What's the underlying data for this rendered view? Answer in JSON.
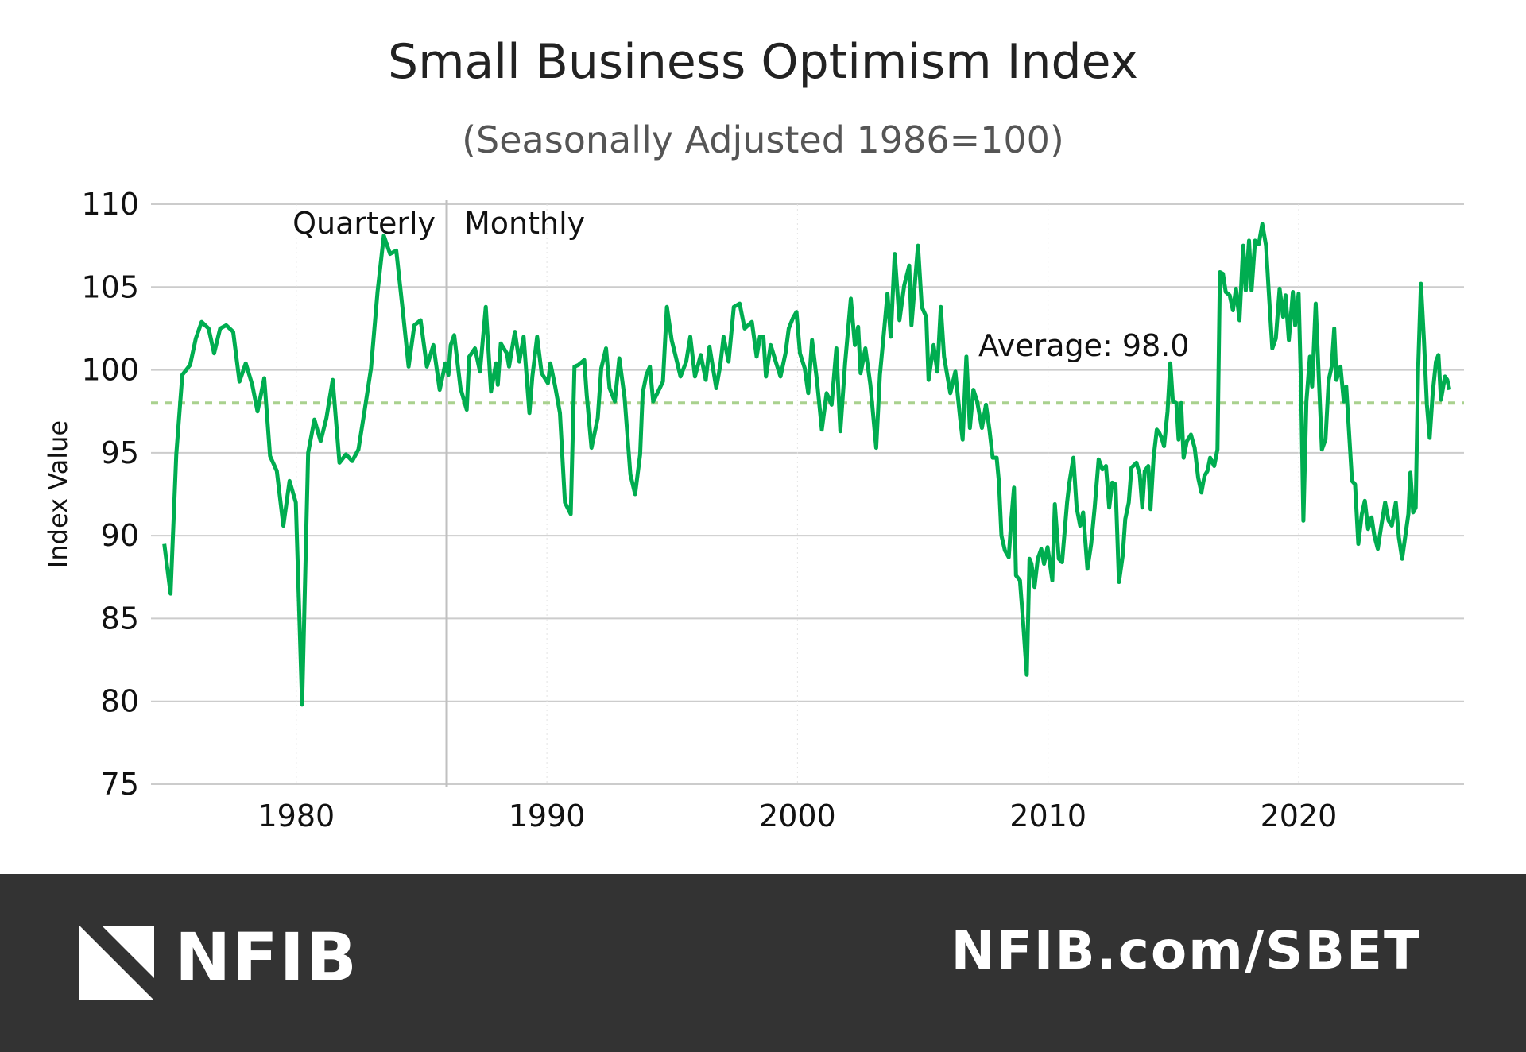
{
  "chart_data": {
    "type": "line",
    "title": "Small Business Optimism Index",
    "subtitle": "(Seasonally Adjusted 1986=100)",
    "ylabel": "Index Value",
    "xlabel": "",
    "ylim": [
      75,
      110
    ],
    "xlim": [
      1974.2,
      2026.6
    ],
    "yticks": [
      "75",
      "80",
      "85",
      "90",
      "95",
      "100",
      "105",
      "110"
    ],
    "xticks": [
      "1980",
      "1990",
      "2000",
      "2010",
      "2020"
    ],
    "grid": true,
    "colors": {
      "line": "#00ad50",
      "average": "#a9d18e",
      "grid": "#cccccc",
      "divider": "#c0c0c0"
    },
    "average": {
      "value": 98.0,
      "label": "Average: 98.0"
    },
    "divider": {
      "x": 1986,
      "left_label": "Quarterly",
      "right_label": "Monthly"
    },
    "points": [
      [
        1974.73,
        89.5
      ],
      [
        1974.98,
        86.5
      ],
      [
        1975.21,
        94.9
      ],
      [
        1975.45,
        99.7
      ],
      [
        1975.76,
        100.3
      ],
      [
        1975.99,
        101.9
      ],
      [
        1976.22,
        102.9
      ],
      [
        1976.5,
        102.5
      ],
      [
        1976.72,
        101.0
      ],
      [
        1976.96,
        102.5
      ],
      [
        1977.2,
        102.7
      ],
      [
        1977.48,
        102.3
      ],
      [
        1977.73,
        99.3
      ],
      [
        1977.98,
        100.4
      ],
      [
        1978.24,
        99.1
      ],
      [
        1978.45,
        97.5
      ],
      [
        1978.72,
        99.5
      ],
      [
        1978.95,
        94.8
      ],
      [
        1979.22,
        93.9
      ],
      [
        1979.48,
        90.6
      ],
      [
        1979.73,
        93.3
      ],
      [
        1979.98,
        92.0
      ],
      [
        1980.23,
        79.8
      ],
      [
        1980.47,
        95.0
      ],
      [
        1980.72,
        97.0
      ],
      [
        1980.97,
        95.7
      ],
      [
        1981.2,
        97.1
      ],
      [
        1981.45,
        99.4
      ],
      [
        1981.72,
        94.4
      ],
      [
        1981.98,
        94.9
      ],
      [
        1982.23,
        94.5
      ],
      [
        1982.48,
        95.2
      ],
      [
        1982.73,
        97.6
      ],
      [
        1982.98,
        100.1
      ],
      [
        1983.24,
        104.7
      ],
      [
        1983.49,
        108.1
      ],
      [
        1983.74,
        107.0
      ],
      [
        1983.99,
        107.2
      ],
      [
        1984.24,
        103.7
      ],
      [
        1984.48,
        100.2
      ],
      [
        1984.71,
        102.7
      ],
      [
        1984.96,
        103.0
      ],
      [
        1985.21,
        100.2
      ],
      [
        1985.47,
        101.5
      ],
      [
        1985.72,
        98.8
      ],
      [
        1985.95,
        100.4
      ],
      [
        1986.07,
        99.7
      ],
      [
        1986.16,
        101.5
      ],
      [
        1986.3,
        102.1
      ],
      [
        1986.55,
        98.9
      ],
      [
        1986.8,
        97.6
      ],
      [
        1986.9,
        100.8
      ],
      [
        1987.13,
        101.3
      ],
      [
        1987.33,
        99.9
      ],
      [
        1987.56,
        103.8
      ],
      [
        1987.77,
        98.7
      ],
      [
        1987.97,
        100.4
      ],
      [
        1988.04,
        99.1
      ],
      [
        1988.16,
        101.6
      ],
      [
        1988.4,
        101.0
      ],
      [
        1988.49,
        100.2
      ],
      [
        1988.72,
        102.3
      ],
      [
        1988.9,
        100.5
      ],
      [
        1989.07,
        102.0
      ],
      [
        1989.3,
        97.4
      ],
      [
        1989.42,
        99.6
      ],
      [
        1989.61,
        102.0
      ],
      [
        1989.79,
        99.8
      ],
      [
        1990.04,
        99.2
      ],
      [
        1990.14,
        100.4
      ],
      [
        1990.33,
        99.0
      ],
      [
        1990.52,
        97.4
      ],
      [
        1990.72,
        92.0
      ],
      [
        1990.95,
        91.3
      ],
      [
        1991.1,
        100.2
      ],
      [
        1991.26,
        100.3
      ],
      [
        1991.49,
        100.6
      ],
      [
        1991.59,
        98.5
      ],
      [
        1991.78,
        95.3
      ],
      [
        1992.03,
        97.1
      ],
      [
        1992.17,
        100.1
      ],
      [
        1992.36,
        101.3
      ],
      [
        1992.5,
        98.9
      ],
      [
        1992.71,
        98.1
      ],
      [
        1992.89,
        100.7
      ],
      [
        1993.1,
        98.3
      ],
      [
        1993.33,
        93.7
      ],
      [
        1993.52,
        92.5
      ],
      [
        1993.72,
        94.9
      ],
      [
        1993.82,
        98.6
      ],
      [
        1993.97,
        99.7
      ],
      [
        1994.11,
        100.2
      ],
      [
        1994.24,
        98.1
      ],
      [
        1994.44,
        98.7
      ],
      [
        1994.63,
        99.3
      ],
      [
        1994.79,
        103.8
      ],
      [
        1994.98,
        101.8
      ],
      [
        1995.14,
        100.8
      ],
      [
        1995.33,
        99.6
      ],
      [
        1995.56,
        100.5
      ],
      [
        1995.72,
        102.0
      ],
      [
        1995.91,
        99.6
      ],
      [
        1996.14,
        100.9
      ],
      [
        1996.34,
        99.4
      ],
      [
        1996.49,
        101.4
      ],
      [
        1996.76,
        98.9
      ],
      [
        1996.92,
        100.3
      ],
      [
        1997.05,
        102.0
      ],
      [
        1997.25,
        100.5
      ],
      [
        1997.46,
        103.8
      ],
      [
        1997.69,
        104.0
      ],
      [
        1997.89,
        102.5
      ],
      [
        1998.18,
        102.9
      ],
      [
        1998.37,
        100.8
      ],
      [
        1998.5,
        102.0
      ],
      [
        1998.64,
        102.0
      ],
      [
        1998.74,
        99.6
      ],
      [
        1998.93,
        101.5
      ],
      [
        1999.13,
        100.5
      ],
      [
        1999.32,
        99.6
      ],
      [
        1999.52,
        101.0
      ],
      [
        1999.65,
        102.5
      ],
      [
        1999.81,
        103.1
      ],
      [
        1999.96,
        103.5
      ],
      [
        2000.1,
        101.0
      ],
      [
        2000.29,
        100.1
      ],
      [
        2000.43,
        98.6
      ],
      [
        2000.58,
        101.8
      ],
      [
        2000.78,
        99.3
      ],
      [
        2000.97,
        96.4
      ],
      [
        2001.16,
        98.6
      ],
      [
        2001.36,
        97.9
      ],
      [
        2001.55,
        101.3
      ],
      [
        2001.71,
        96.3
      ],
      [
        2001.9,
        100.4
      ],
      [
        2002.13,
        104.3
      ],
      [
        2002.29,
        101.5
      ],
      [
        2002.42,
        102.6
      ],
      [
        2002.52,
        99.8
      ],
      [
        2002.71,
        101.3
      ],
      [
        2002.91,
        99.1
      ],
      [
        2003.14,
        95.3
      ],
      [
        2003.29,
        99.7
      ],
      [
        2003.45,
        102.3
      ],
      [
        2003.59,
        104.6
      ],
      [
        2003.72,
        102.0
      ],
      [
        2003.88,
        107.0
      ],
      [
        2004.07,
        103.0
      ],
      [
        2004.26,
        105.1
      ],
      [
        2004.46,
        106.3
      ],
      [
        2004.55,
        102.7
      ],
      [
        2004.81,
        107.5
      ],
      [
        2004.96,
        103.8
      ],
      [
        2005.14,
        103.2
      ],
      [
        2005.23,
        99.4
      ],
      [
        2005.43,
        101.5
      ],
      [
        2005.58,
        99.9
      ],
      [
        2005.72,
        103.8
      ],
      [
        2005.85,
        100.8
      ],
      [
        2006.1,
        98.6
      ],
      [
        2006.3,
        99.9
      ],
      [
        2006.49,
        97.1
      ],
      [
        2006.59,
        95.8
      ],
      [
        2006.74,
        100.8
      ],
      [
        2006.88,
        96.5
      ],
      [
        2007.02,
        98.8
      ],
      [
        2007.17,
        98.1
      ],
      [
        2007.36,
        96.5
      ],
      [
        2007.52,
        97.9
      ],
      [
        2007.66,
        96.4
      ],
      [
        2007.79,
        94.7
      ],
      [
        2007.95,
        94.7
      ],
      [
        2008.04,
        93.2
      ],
      [
        2008.14,
        90.0
      ],
      [
        2008.28,
        89.1
      ],
      [
        2008.43,
        88.7
      ],
      [
        2008.53,
        90.9
      ],
      [
        2008.64,
        92.9
      ],
      [
        2008.72,
        87.6
      ],
      [
        2008.88,
        87.3
      ],
      [
        2009.01,
        84.7
      ],
      [
        2009.15,
        81.6
      ],
      [
        2009.26,
        88.6
      ],
      [
        2009.34,
        88.3
      ],
      [
        2009.46,
        86.9
      ],
      [
        2009.59,
        88.6
      ],
      [
        2009.73,
        89.2
      ],
      [
        2009.84,
        88.3
      ],
      [
        2009.98,
        89.3
      ],
      [
        2010.17,
        87.3
      ],
      [
        2010.27,
        91.9
      ],
      [
        2010.43,
        88.6
      ],
      [
        2010.56,
        88.4
      ],
      [
        2010.76,
        92.0
      ],
      [
        2010.85,
        93.2
      ],
      [
        2011.01,
        94.7
      ],
      [
        2011.14,
        91.7
      ],
      [
        2011.28,
        90.6
      ],
      [
        2011.4,
        91.4
      ],
      [
        2011.57,
        88.0
      ],
      [
        2011.72,
        89.5
      ],
      [
        2011.86,
        91.7
      ],
      [
        2012.02,
        94.6
      ],
      [
        2012.17,
        94.0
      ],
      [
        2012.31,
        94.2
      ],
      [
        2012.44,
        91.7
      ],
      [
        2012.56,
        93.2
      ],
      [
        2012.69,
        93.1
      ],
      [
        2012.83,
        87.2
      ],
      [
        2012.98,
        88.8
      ],
      [
        2013.08,
        91.0
      ],
      [
        2013.22,
        92.0
      ],
      [
        2013.33,
        94.1
      ],
      [
        2013.53,
        94.4
      ],
      [
        2013.66,
        93.7
      ],
      [
        2013.76,
        91.7
      ],
      [
        2013.86,
        93.9
      ],
      [
        2014.0,
        94.2
      ],
      [
        2014.09,
        91.6
      ],
      [
        2014.21,
        94.7
      ],
      [
        2014.34,
        96.4
      ],
      [
        2014.44,
        96.2
      ],
      [
        2014.53,
        95.9
      ],
      [
        2014.63,
        95.4
      ],
      [
        2014.77,
        97.5
      ],
      [
        2014.88,
        100.4
      ],
      [
        2014.98,
        98.1
      ],
      [
        2015.12,
        98.0
      ],
      [
        2015.21,
        95.8
      ],
      [
        2015.31,
        98.0
      ],
      [
        2015.41,
        94.7
      ],
      [
        2015.54,
        95.7
      ],
      [
        2015.7,
        96.1
      ],
      [
        2015.85,
        95.3
      ],
      [
        2015.99,
        93.5
      ],
      [
        2016.12,
        92.6
      ],
      [
        2016.24,
        93.6
      ],
      [
        2016.36,
        93.9
      ],
      [
        2016.47,
        94.7
      ],
      [
        2016.63,
        94.2
      ],
      [
        2016.76,
        95.2
      ],
      [
        2016.86,
        105.9
      ],
      [
        2016.98,
        105.8
      ],
      [
        2017.09,
        104.7
      ],
      [
        2017.25,
        104.5
      ],
      [
        2017.38,
        103.6
      ],
      [
        2017.5,
        104.9
      ],
      [
        2017.64,
        103.0
      ],
      [
        2017.79,
        107.5
      ],
      [
        2017.89,
        104.8
      ],
      [
        2018.02,
        107.8
      ],
      [
        2018.12,
        104.8
      ],
      [
        2018.26,
        107.8
      ],
      [
        2018.41,
        107.6
      ],
      [
        2018.55,
        108.8
      ],
      [
        2018.7,
        107.5
      ],
      [
        2018.8,
        104.9
      ],
      [
        2018.95,
        101.3
      ],
      [
        2019.09,
        101.9
      ],
      [
        2019.24,
        104.9
      ],
      [
        2019.38,
        103.2
      ],
      [
        2019.48,
        104.5
      ],
      [
        2019.61,
        101.8
      ],
      [
        2019.77,
        104.7
      ],
      [
        2019.86,
        102.7
      ],
      [
        2020.0,
        104.6
      ],
      [
        2020.1,
        98.7
      ],
      [
        2020.19,
        90.9
      ],
      [
        2020.31,
        98.1
      ],
      [
        2020.45,
        100.8
      ],
      [
        2020.54,
        99.0
      ],
      [
        2020.68,
        104.0
      ],
      [
        2020.79,
        100.1
      ],
      [
        2020.93,
        95.2
      ],
      [
        2021.07,
        95.8
      ],
      [
        2021.2,
        99.4
      ],
      [
        2021.32,
        100.2
      ],
      [
        2021.42,
        102.5
      ],
      [
        2021.51,
        99.4
      ],
      [
        2021.67,
        100.2
      ],
      [
        2021.8,
        98.1
      ],
      [
        2021.9,
        99.0
      ],
      [
        2022.0,
        96.5
      ],
      [
        2022.13,
        93.3
      ],
      [
        2022.25,
        93.1
      ],
      [
        2022.38,
        89.5
      ],
      [
        2022.52,
        91.3
      ],
      [
        2022.64,
        92.1
      ],
      [
        2022.77,
        90.4
      ],
      [
        2022.91,
        91.1
      ],
      [
        2023.02,
        90.0
      ],
      [
        2023.16,
        89.2
      ],
      [
        2023.29,
        90.5
      ],
      [
        2023.45,
        92.0
      ],
      [
        2023.59,
        90.9
      ],
      [
        2023.72,
        90.6
      ],
      [
        2023.88,
        92.0
      ],
      [
        2024.0,
        89.9
      ],
      [
        2024.13,
        88.6
      ],
      [
        2024.26,
        90.0
      ],
      [
        2024.38,
        91.3
      ],
      [
        2024.46,
        93.8
      ],
      [
        2024.57,
        91.4
      ],
      [
        2024.67,
        91.7
      ],
      [
        2024.77,
        100.1
      ],
      [
        2024.88,
        105.2
      ],
      [
        2025.0,
        101.8
      ],
      [
        2025.12,
        97.9
      ],
      [
        2025.23,
        95.9
      ],
      [
        2025.35,
        98.6
      ],
      [
        2025.48,
        100.5
      ],
      [
        2025.58,
        100.9
      ],
      [
        2025.68,
        98.2
      ],
      [
        2025.84,
        99.6
      ],
      [
        2025.93,
        99.4
      ],
      [
        2026.02,
        98.8
      ]
    ]
  },
  "footer": {
    "logo_text": "NFIB",
    "url": "NFIB.com/SBET",
    "background": "#333333"
  }
}
